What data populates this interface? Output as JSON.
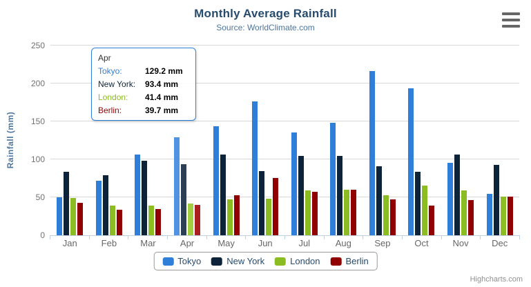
{
  "chart_data": {
    "type": "bar",
    "title": "Monthly Average Rainfall",
    "subtitle": "Source: WorldClimate.com",
    "xlabel": "",
    "ylabel": "Rainfall (mm)",
    "ylim": [
      0,
      250
    ],
    "yticks": [
      0,
      50,
      100,
      150,
      200,
      250
    ],
    "grid": true,
    "legend_position": "bottom",
    "categories": [
      "Jan",
      "Feb",
      "Mar",
      "Apr",
      "May",
      "Jun",
      "Jul",
      "Aug",
      "Sep",
      "Oct",
      "Nov",
      "Dec"
    ],
    "hovered_category_index": 3,
    "series": [
      {
        "name": "Tokyo",
        "color": "#2f7ed8",
        "hover_color": "#4f93e2",
        "values": [
          49.9,
          71.5,
          106.4,
          129.2,
          144.0,
          176.0,
          135.6,
          148.5,
          216.4,
          194.1,
          95.6,
          54.4
        ]
      },
      {
        "name": "New York",
        "color": "#0d233a",
        "hover_color": "#2b3f55",
        "values": [
          83.6,
          78.8,
          98.5,
          93.4,
          106.0,
          84.5,
          105.0,
          104.3,
          91.2,
          83.5,
          106.6,
          92.3
        ]
      },
      {
        "name": "London",
        "color": "#8bbc21",
        "hover_color": "#a3ce41",
        "values": [
          48.9,
          38.8,
          39.3,
          41.4,
          47.0,
          48.3,
          59.0,
          59.6,
          52.4,
          65.2,
          59.3,
          51.2
        ]
      },
      {
        "name": "Berlin",
        "color": "#910000",
        "hover_color": "#aa2020",
        "values": [
          42.4,
          33.2,
          34.5,
          39.7,
          52.6,
          75.5,
          57.4,
          60.4,
          47.6,
          39.1,
          46.8,
          51.1
        ]
      }
    ]
  },
  "tooltip": {
    "header": "Apr",
    "border_color": "#2f7ed8",
    "rows": [
      {
        "name": "Tokyo:",
        "value": "129.2 mm",
        "color": "#2f7ed8"
      },
      {
        "name": "New York:",
        "value": "93.4 mm",
        "color": "#0d233a"
      },
      {
        "name": "London:",
        "value": "41.4 mm",
        "color": "#8bbc21"
      },
      {
        "name": "Berlin:",
        "value": "39.7 mm",
        "color": "#910000"
      }
    ]
  },
  "legend": {
    "items": [
      "Tokyo",
      "New York",
      "London",
      "Berlin"
    ]
  },
  "export_menu": {
    "icon": "hamburger-icon"
  },
  "credits": {
    "label": "Highcharts.com"
  },
  "colors": {
    "title": "#274b6d",
    "subtitle": "#4d759e",
    "axis_title": "#4d759e",
    "axis_labels": "#707070",
    "gridline": "#d8d8d8",
    "axis_line": "#c0d0e0",
    "legend_border": "#999999",
    "credits": "#909090"
  }
}
